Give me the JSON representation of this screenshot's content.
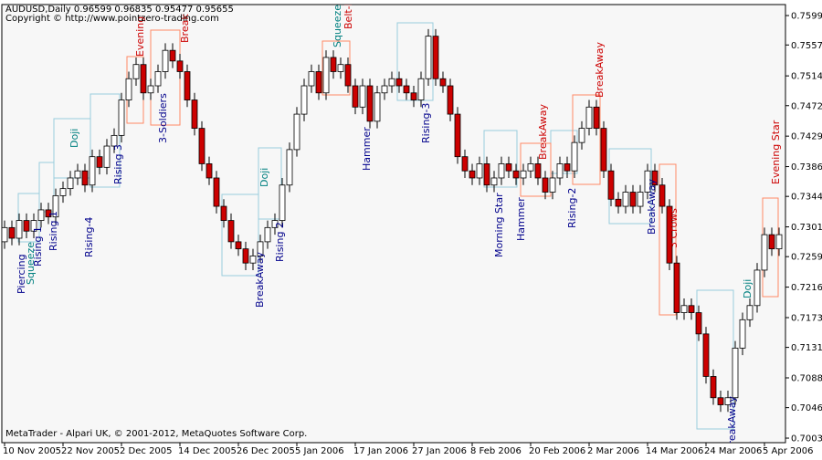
{
  "chart_data": {
    "type": "candlestick",
    "title": "AUDUSD,Daily  0.96599 0.96835 0.95477 0.95655",
    "subtitle": "Copyright © http://www.pointzero-trading.com",
    "footer": "MetaTrader - Alpari UK, © 2001-2012, MetaQuotes Software Corp.",
    "up_color": "#ffffff",
    "down_color": "#cc0000",
    "edge_color": "#000000",
    "ylim": [
      0.69966,
      0.76146
    ],
    "yticks": [
      {
        "value": 0.75991,
        "label": "0.75991"
      },
      {
        "value": 0.75576,
        "label": "0.75576"
      },
      {
        "value": 0.7514,
        "label": "0.75140"
      },
      {
        "value": 0.7472,
        "label": "0.74720"
      },
      {
        "value": 0.7429,
        "label": "0.74290"
      },
      {
        "value": 0.7386,
        "label": "0.73860"
      },
      {
        "value": 0.7344,
        "label": "0.73440"
      },
      {
        "value": 0.7301,
        "label": "0.73010"
      },
      {
        "value": 0.7259,
        "label": "0.72590"
      },
      {
        "value": 0.7216,
        "label": "0.72160"
      },
      {
        "value": 0.7173,
        "label": "0.71730"
      },
      {
        "value": 0.7131,
        "label": "0.71310"
      },
      {
        "value": 0.7088,
        "label": "0.70880"
      },
      {
        "value": 0.7046,
        "label": "0.70460"
      },
      {
        "value": 0.7003,
        "label": "0.70030"
      }
    ],
    "x": [
      "10 Nov 2005",
      null,
      null,
      null,
      null,
      null,
      null,
      null,
      "22 Nov 2005",
      null,
      null,
      null,
      null,
      null,
      null,
      null,
      "2 Dec 2005",
      null,
      null,
      null,
      null,
      null,
      null,
      null,
      "14 Dec 2005",
      null,
      null,
      null,
      null,
      null,
      null,
      null,
      "26 Dec 2005",
      null,
      null,
      null,
      null,
      null,
      null,
      null,
      "5 Jan 2006",
      null,
      null,
      null,
      null,
      null,
      null,
      null,
      "17 Jan 2006",
      null,
      null,
      null,
      null,
      null,
      null,
      null,
      "27 Jan 2006",
      null,
      null,
      null,
      null,
      null,
      null,
      null,
      "8 Feb 2006",
      null,
      null,
      null,
      null,
      null,
      null,
      null,
      "20 Feb 2006",
      null,
      null,
      null,
      null,
      null,
      null,
      null,
      "2 Mar 2006",
      null,
      null,
      null,
      null,
      null,
      null,
      null,
      "14 Mar 2006",
      null,
      null,
      null,
      null,
      null,
      null,
      null,
      "24 Mar 2006",
      null,
      null,
      null,
      null,
      null,
      null,
      null,
      "5 Apr 2006",
      null,
      null
    ],
    "ohlc": [
      [
        0.728,
        0.731,
        0.727,
        0.73
      ],
      [
        0.73,
        0.731,
        0.7275,
        0.7285
      ],
      [
        0.7285,
        0.732,
        0.7275,
        0.731
      ],
      [
        0.731,
        0.732,
        0.7285,
        0.7295
      ],
      [
        0.7295,
        0.732,
        0.7285,
        0.731
      ],
      [
        0.731,
        0.7335,
        0.73,
        0.7325
      ],
      [
        0.7325,
        0.7335,
        0.7305,
        0.7315
      ],
      [
        0.7315,
        0.7355,
        0.7305,
        0.7345
      ],
      [
        0.7345,
        0.7365,
        0.7335,
        0.7355
      ],
      [
        0.7355,
        0.738,
        0.7345,
        0.737
      ],
      [
        0.737,
        0.739,
        0.736,
        0.738
      ],
      [
        0.738,
        0.739,
        0.735,
        0.736
      ],
      [
        0.736,
        0.741,
        0.735,
        0.74
      ],
      [
        0.74,
        0.741,
        0.7375,
        0.7385
      ],
      [
        0.7385,
        0.7425,
        0.7375,
        0.7415
      ],
      [
        0.7415,
        0.744,
        0.7405,
        0.743
      ],
      [
        0.743,
        0.749,
        0.742,
        0.748
      ],
      [
        0.748,
        0.752,
        0.747,
        0.751
      ],
      [
        0.751,
        0.754,
        0.75,
        0.753
      ],
      [
        0.753,
        0.754,
        0.748,
        0.749
      ],
      [
        0.749,
        0.751,
        0.748,
        0.75
      ],
      [
        0.75,
        0.753,
        0.749,
        0.752
      ],
      [
        0.752,
        0.756,
        0.751,
        0.755
      ],
      [
        0.755,
        0.756,
        0.7525,
        0.7535
      ],
      [
        0.7535,
        0.7545,
        0.751,
        0.752
      ],
      [
        0.752,
        0.753,
        0.747,
        0.748
      ],
      [
        0.748,
        0.749,
        0.743,
        0.744
      ],
      [
        0.744,
        0.745,
        0.738,
        0.739
      ],
      [
        0.739,
        0.74,
        0.736,
        0.737
      ],
      [
        0.737,
        0.738,
        0.732,
        0.733
      ],
      [
        0.733,
        0.734,
        0.73,
        0.731
      ],
      [
        0.731,
        0.732,
        0.727,
        0.728
      ],
      [
        0.728,
        0.729,
        0.726,
        0.727
      ],
      [
        0.727,
        0.728,
        0.724,
        0.725
      ],
      [
        0.725,
        0.727,
        0.724,
        0.726
      ],
      [
        0.726,
        0.729,
        0.725,
        0.728
      ],
      [
        0.728,
        0.731,
        0.727,
        0.73
      ],
      [
        0.73,
        0.732,
        0.729,
        0.731
      ],
      [
        0.731,
        0.737,
        0.73,
        0.736
      ],
      [
        0.736,
        0.742,
        0.735,
        0.741
      ],
      [
        0.741,
        0.747,
        0.74,
        0.746
      ],
      [
        0.746,
        0.751,
        0.745,
        0.75
      ],
      [
        0.75,
        0.753,
        0.749,
        0.752
      ],
      [
        0.752,
        0.753,
        0.748,
        0.749
      ],
      [
        0.749,
        0.755,
        0.748,
        0.754
      ],
      [
        0.754,
        0.755,
        0.751,
        0.752
      ],
      [
        0.752,
        0.754,
        0.751,
        0.753
      ],
      [
        0.753,
        0.754,
        0.749,
        0.75
      ],
      [
        0.75,
        0.751,
        0.746,
        0.747
      ],
      [
        0.747,
        0.751,
        0.746,
        0.75
      ],
      [
        0.75,
        0.751,
        0.744,
        0.745
      ],
      [
        0.745,
        0.75,
        0.744,
        0.749
      ],
      [
        0.749,
        0.751,
        0.748,
        0.75
      ],
      [
        0.75,
        0.752,
        0.749,
        0.751
      ],
      [
        0.751,
        0.752,
        0.749,
        0.75
      ],
      [
        0.75,
        0.751,
        0.748,
        0.749
      ],
      [
        0.749,
        0.75,
        0.747,
        0.748
      ],
      [
        0.748,
        0.752,
        0.747,
        0.751
      ],
      [
        0.751,
        0.758,
        0.75,
        0.757
      ],
      [
        0.757,
        0.758,
        0.75,
        0.751
      ],
      [
        0.751,
        0.752,
        0.749,
        0.75
      ],
      [
        0.75,
        0.751,
        0.745,
        0.746
      ],
      [
        0.746,
        0.747,
        0.739,
        0.74
      ],
      [
        0.74,
        0.741,
        0.737,
        0.738
      ],
      [
        0.738,
        0.739,
        0.736,
        0.737
      ],
      [
        0.737,
        0.74,
        0.736,
        0.739
      ],
      [
        0.739,
        0.74,
        0.735,
        0.736
      ],
      [
        0.736,
        0.738,
        0.735,
        0.737
      ],
      [
        0.737,
        0.74,
        0.736,
        0.739
      ],
      [
        0.739,
        0.74,
        0.737,
        0.738
      ],
      [
        0.738,
        0.739,
        0.736,
        0.737
      ],
      [
        0.737,
        0.739,
        0.736,
        0.738
      ],
      [
        0.738,
        0.74,
        0.737,
        0.739
      ],
      [
        0.739,
        0.74,
        0.736,
        0.737
      ],
      [
        0.737,
        0.738,
        0.734,
        0.735
      ],
      [
        0.735,
        0.738,
        0.734,
        0.737
      ],
      [
        0.737,
        0.74,
        0.736,
        0.739
      ],
      [
        0.739,
        0.74,
        0.737,
        0.738
      ],
      [
        0.738,
        0.743,
        0.737,
        0.742
      ],
      [
        0.742,
        0.745,
        0.741,
        0.744
      ],
      [
        0.744,
        0.748,
        0.743,
        0.747
      ],
      [
        0.747,
        0.748,
        0.743,
        0.744
      ],
      [
        0.744,
        0.745,
        0.737,
        0.738
      ],
      [
        0.738,
        0.739,
        0.733,
        0.734
      ],
      [
        0.734,
        0.735,
        0.732,
        0.733
      ],
      [
        0.733,
        0.736,
        0.732,
        0.735
      ],
      [
        0.735,
        0.736,
        0.732,
        0.733
      ],
      [
        0.733,
        0.736,
        0.732,
        0.735
      ],
      [
        0.735,
        0.739,
        0.734,
        0.738
      ],
      [
        0.738,
        0.739,
        0.735,
        0.736
      ],
      [
        0.736,
        0.737,
        0.732,
        0.733
      ],
      [
        0.733,
        0.734,
        0.724,
        0.725
      ],
      [
        0.725,
        0.726,
        0.717,
        0.718
      ],
      [
        0.718,
        0.72,
        0.717,
        0.719
      ],
      [
        0.719,
        0.72,
        0.717,
        0.718
      ],
      [
        0.718,
        0.719,
        0.714,
        0.715
      ],
      [
        0.715,
        0.716,
        0.708,
        0.709
      ],
      [
        0.709,
        0.71,
        0.705,
        0.706
      ],
      [
        0.706,
        0.707,
        0.704,
        0.705
      ],
      [
        0.705,
        0.707,
        0.704,
        0.706
      ],
      [
        0.706,
        0.714,
        0.705,
        0.713
      ],
      [
        0.713,
        0.718,
        0.712,
        0.717
      ],
      [
        0.717,
        0.72,
        0.716,
        0.719
      ],
      [
        0.719,
        0.725,
        0.718,
        0.724
      ],
      [
        0.724,
        0.73,
        0.723,
        0.729
      ],
      [
        0.729,
        0.73,
        0.726,
        0.727
      ],
      [
        0.727,
        0.73,
        0.726,
        0.729
      ]
    ],
    "annotations": [
      {
        "text": "Piercing",
        "color": "#00008b"
      },
      {
        "text": "Squeeze",
        "color": "#008080"
      },
      {
        "text": "Rising 1",
        "color": "#00008b"
      },
      {
        "text": "Rising 1",
        "color": "#00008b"
      },
      {
        "text": "Doji",
        "color": "#008080"
      },
      {
        "text": "Rising-4",
        "color": "#00008b"
      },
      {
        "text": "Rising 3",
        "color": "#00008b"
      },
      {
        "text": "Evening",
        "color": "#cc0000"
      },
      {
        "text": "3-Soldiers",
        "color": "#00008b"
      },
      {
        "text": "Break",
        "color": "#cc0000"
      },
      {
        "text": "BreakAway",
        "color": "#00008b"
      },
      {
        "text": "Doji",
        "color": "#008080"
      },
      {
        "text": "Rising 2",
        "color": "#00008b"
      },
      {
        "text": "Squeeze",
        "color": "#008080"
      },
      {
        "text": "Belt-H",
        "color": "#cc0000"
      },
      {
        "text": "Hammer",
        "color": "#00008b"
      },
      {
        "text": "Rising-3",
        "color": "#00008b"
      },
      {
        "text": "Morning Star",
        "color": "#00008b"
      },
      {
        "text": "Hammer",
        "color": "#00008b"
      },
      {
        "text": "BreakAway",
        "color": "#cc0000"
      },
      {
        "text": "Rising-2",
        "color": "#00008b"
      },
      {
        "text": "BreakAway",
        "color": "#cc0000"
      },
      {
        "text": "BreakAway",
        "color": "#00008b"
      },
      {
        "text": "3 Crows",
        "color": "#cc0000"
      },
      {
        "text": "BreakAway",
        "color": "#00008b"
      },
      {
        "text": "Doji",
        "color": "#008080"
      },
      {
        "text": "Evening Star",
        "color": "#cc0000"
      }
    ]
  }
}
